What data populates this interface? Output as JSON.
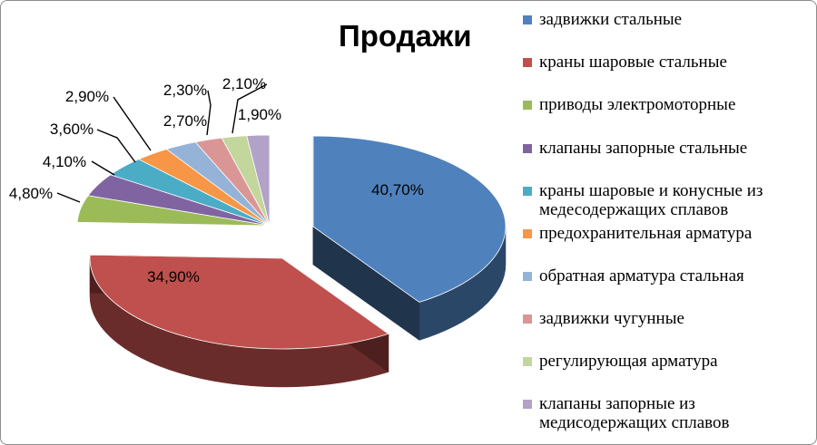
{
  "chart_data": {
    "type": "pie",
    "title": "Продажи",
    "legend_position": "right",
    "exploded": true,
    "three_d": true,
    "slices": [
      {
        "name": "задвижки стальные",
        "value": 40.7,
        "label": "40,70%",
        "color": "#4F81BD"
      },
      {
        "name": "краны шаровые стальные",
        "value": 34.9,
        "label": "34,90%",
        "color": "#C0504D"
      },
      {
        "name": "приводы электромоторные",
        "value": 4.8,
        "label": "4,80%",
        "color": "#9BBB59"
      },
      {
        "name": "клапаны запорные стальные",
        "value": 4.1,
        "label": "4,10%",
        "color": "#8064A2"
      },
      {
        "name": "краны шаровые и конусные из медесодержащих сплавов",
        "value": 3.6,
        "label": "3,60%",
        "color": "#4BACC6"
      },
      {
        "name": "предохранительная арматура",
        "value": 2.9,
        "label": "2,90%",
        "color": "#F79646"
      },
      {
        "name": "обратная арматура стальная",
        "value": 2.7,
        "label": "2,70%",
        "color": "#95B3D7"
      },
      {
        "name": "задвижки чугунные",
        "value": 2.3,
        "label": "2,30%",
        "color": "#D99694"
      },
      {
        "name": "регулирующая арматура",
        "value": 2.1,
        "label": "2,10%",
        "color": "#C3D69B"
      },
      {
        "name": "клапаны запорные из медисодержащих сплавов",
        "value": 1.9,
        "label": "1,90%",
        "color": "#B3A2C7"
      }
    ]
  }
}
